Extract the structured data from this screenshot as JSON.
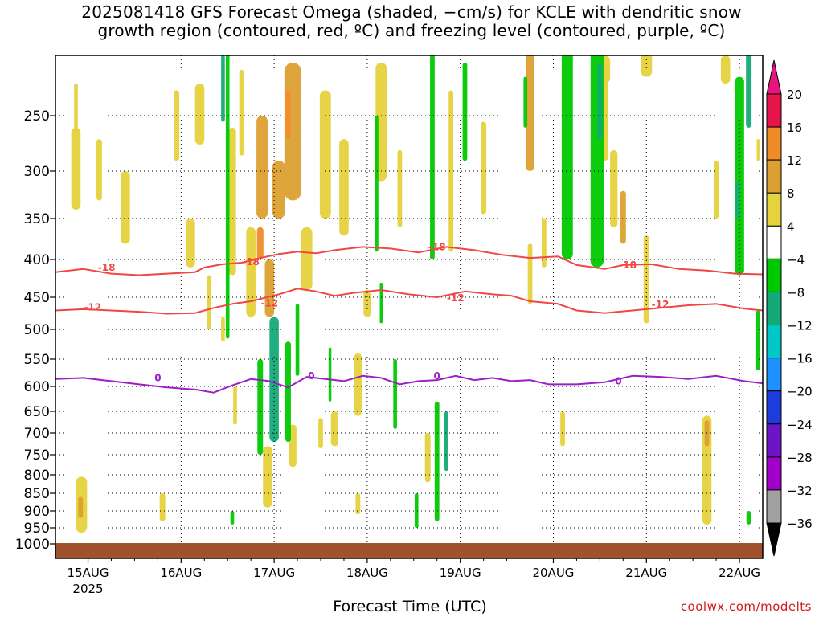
{
  "title_line1": "2025081418 GFS Forecast Omega (shaded, −cm/s) for KCLE with dendritic snow",
  "title_line2": "growth region (contoured, red, ºC) and freezing level (contoured, purple, ºC)",
  "credit": "coolwx.com/modelts",
  "chart_data": {
    "type": "heatmap",
    "title": "2025081418 GFS Forecast Omega (shaded, −cm/s) for KCLE with dendritic snow growth region (contoured, red, ºC) and freezing level (contoured, purple, ºC)",
    "xlabel": "Forecast Time (UTC)",
    "ylabel": "",
    "x_ticks": [
      "15AUG",
      "16AUG",
      "17AUG",
      "18AUG",
      "19AUG",
      "20AUG",
      "21AUG",
      "22AUG"
    ],
    "x_tick_sub": "2025",
    "x_tick_times": [
      0.35,
      1.35,
      2.35,
      3.35,
      4.35,
      5.35,
      6.35,
      7.35
    ],
    "xlim": [
      0,
      7.6
    ],
    "y_ticks": [
      250,
      300,
      350,
      400,
      450,
      500,
      550,
      600,
      650,
      700,
      750,
      800,
      850,
      900,
      950,
      1000
    ],
    "ylim": [
      200,
      1020
    ],
    "y_axis": "pressure (hPa), inverted, log scale",
    "grid": true,
    "colorbar": {
      "labels": [
        "20",
        "16",
        "12",
        "8",
        "4",
        "−4",
        "−8",
        "−12",
        "−16",
        "−20",
        "−24",
        "−28",
        "−32",
        "−36"
      ],
      "colors": [
        "#e6144b",
        "#f08c28",
        "#dca032",
        "#e6d23c",
        "#ffffff",
        "#00c800",
        "#14aa78",
        "#00c8c8",
        "#1e90ff",
        "#1e3cdc",
        "#6e14c8",
        "#a000c8",
        "#a0a0a0",
        "#000000"
      ],
      "top_arrow_color": "#e6147d",
      "bottom_arrow_color": "#000000"
    },
    "contours": [
      {
        "name": "-18",
        "color": "#f04646",
        "x": [
          0,
          0.3,
          0.6,
          0.9,
          1.2,
          1.5,
          1.6,
          1.8,
          2.0,
          2.2,
          2.4,
          2.6,
          2.8,
          3.0,
          3.3,
          3.6,
          3.9,
          4.2,
          4.5,
          4.8,
          5.1,
          5.4,
          5.6,
          5.9,
          6.1,
          6.4,
          6.7,
          7.0,
          7.3,
          7.6
        ],
        "y": [
          416,
          412,
          418,
          420,
          418,
          416,
          410,
          406,
          404,
          398,
          393,
          390,
          392,
          388,
          384,
          386,
          391,
          384,
          388,
          394,
          398,
          396,
          407,
          412,
          407,
          406,
          412,
          414,
          418,
          419
        ],
        "labels": [
          [
            0.55,
            410
          ],
          [
            2.1,
            403
          ],
          [
            4.1,
            384
          ],
          [
            6.15,
            407
          ]
        ]
      },
      {
        "name": "-12",
        "color": "#f04646",
        "x": [
          0,
          0.3,
          0.6,
          0.9,
          1.2,
          1.5,
          1.7,
          1.9,
          2.1,
          2.4,
          2.6,
          2.8,
          3.0,
          3.2,
          3.5,
          3.8,
          4.1,
          4.4,
          4.7,
          4.9,
          5.1,
          5.4,
          5.6,
          5.9,
          6.2,
          6.5,
          6.8,
          7.1,
          7.4,
          7.6
        ],
        "y": [
          470,
          468,
          470,
          472,
          475,
          474,
          466,
          460,
          456,
          446,
          438,
          442,
          448,
          444,
          440,
          446,
          450,
          442,
          446,
          448,
          456,
          460,
          470,
          474,
          470,
          466,
          462,
          460,
          467,
          470
        ],
        "labels": [
          [
            0.4,
            465
          ],
          [
            2.3,
            459
          ],
          [
            4.3,
            451
          ],
          [
            6.5,
            461
          ]
        ]
      },
      {
        "name": "0",
        "color": "#9b1ec8",
        "x": [
          0,
          0.3,
          0.6,
          0.9,
          1.2,
          1.5,
          1.7,
          1.9,
          2.1,
          2.3,
          2.5,
          2.7,
          2.9,
          3.1,
          3.3,
          3.5,
          3.7,
          3.9,
          4.1,
          4.3,
          4.5,
          4.7,
          4.9,
          5.1,
          5.3,
          5.6,
          5.9,
          6.2,
          6.5,
          6.8,
          7.1,
          7.4,
          7.6
        ],
        "y": [
          586,
          584,
          590,
          596,
          602,
          606,
          612,
          598,
          586,
          590,
          602,
          582,
          586,
          590,
          580,
          584,
          596,
          590,
          588,
          580,
          588,
          584,
          590,
          588,
          596,
          596,
          592,
          580,
          582,
          586,
          580,
          590,
          594
        ],
        "labels": [
          [
            1.1,
            584
          ],
          [
            2.75,
            580
          ],
          [
            4.1,
            580
          ],
          [
            6.05,
            590
          ]
        ]
      }
    ],
    "omega_cells": [
      {
        "x": 0.28,
        "y": 885,
        "w": 0.12,
        "h": 160,
        "v": 6
      },
      {
        "x": 0.27,
        "y": 890,
        "w": 0.05,
        "h": 60,
        "v": 10
      },
      {
        "x": 0.22,
        "y": 300,
        "w": 0.1,
        "h": 80,
        "v": 6
      },
      {
        "x": 0.47,
        "y": 300,
        "w": 0.06,
        "h": 60,
        "v": 5
      },
      {
        "x": 0.22,
        "y": 245,
        "w": 0.04,
        "h": 40,
        "v": 5
      },
      {
        "x": 1.15,
        "y": 890,
        "w": 0.06,
        "h": 80,
        "v": 5
      },
      {
        "x": 1.3,
        "y": 260,
        "w": 0.06,
        "h": 60,
        "v": 5
      },
      {
        "x": 1.45,
        "y": 380,
        "w": 0.1,
        "h": 60,
        "v": 5
      },
      {
        "x": 1.55,
        "y": 250,
        "w": 0.1,
        "h": 50,
        "v": 5
      },
      {
        "x": 1.65,
        "y": 460,
        "w": 0.05,
        "h": 80,
        "v": 5
      },
      {
        "x": 1.9,
        "y": 340,
        "w": 0.08,
        "h": 160,
        "v": 6
      },
      {
        "x": 2.0,
        "y": 250,
        "w": 0.05,
        "h": 70,
        "v": 6
      },
      {
        "x": 2.1,
        "y": 420,
        "w": 0.1,
        "h": 120,
        "v": 6
      },
      {
        "x": 2.2,
        "y": 380,
        "w": 0.07,
        "h": 40,
        "v": 13
      },
      {
        "x": 2.22,
        "y": 300,
        "w": 0.12,
        "h": 100,
        "v": 10
      },
      {
        "x": 2.3,
        "y": 440,
        "w": 0.1,
        "h": 80,
        "v": 8
      },
      {
        "x": 2.4,
        "y": 320,
        "w": 0.14,
        "h": 60,
        "v": 9
      },
      {
        "x": 2.55,
        "y": 270,
        "w": 0.18,
        "h": 120,
        "v": 9
      },
      {
        "x": 2.5,
        "y": 250,
        "w": 0.05,
        "h": 40,
        "v": 13
      },
      {
        "x": 2.7,
        "y": 400,
        "w": 0.12,
        "h": 80,
        "v": 6
      },
      {
        "x": 2.9,
        "y": 290,
        "w": 0.12,
        "h": 120,
        "v": 6
      },
      {
        "x": 3.1,
        "y": 320,
        "w": 0.1,
        "h": 100,
        "v": 6
      },
      {
        "x": 3.0,
        "y": 690,
        "w": 0.08,
        "h": 80,
        "v": 6
      },
      {
        "x": 3.25,
        "y": 600,
        "w": 0.08,
        "h": 120,
        "v": 6
      },
      {
        "x": 3.5,
        "y": 260,
        "w": 0.12,
        "h": 100,
        "v": 6
      },
      {
        "x": 3.35,
        "y": 460,
        "w": 0.08,
        "h": 40,
        "v": 7
      },
      {
        "x": 3.7,
        "y": 320,
        "w": 0.05,
        "h": 80,
        "v": 5
      },
      {
        "x": 1.93,
        "y": 640,
        "w": 0.04,
        "h": 80,
        "v": 5
      },
      {
        "x": 2.28,
        "y": 810,
        "w": 0.1,
        "h": 160,
        "v": 6
      },
      {
        "x": 2.55,
        "y": 730,
        "w": 0.08,
        "h": 100,
        "v": 6
      },
      {
        "x": 2.85,
        "y": 700,
        "w": 0.05,
        "h": 70,
        "v": 5
      },
      {
        "x": 3.25,
        "y": 880,
        "w": 0.05,
        "h": 60,
        "v": 5
      },
      {
        "x": 4.0,
        "y": 760,
        "w": 0.06,
        "h": 120,
        "v": 5
      },
      {
        "x": 4.25,
        "y": 310,
        "w": 0.05,
        "h": 160,
        "v": 5
      },
      {
        "x": 4.6,
        "y": 300,
        "w": 0.06,
        "h": 90,
        "v": 5
      },
      {
        "x": 5.1,
        "y": 250,
        "w": 0.08,
        "h": 100,
        "v": 8
      },
      {
        "x": 5.1,
        "y": 420,
        "w": 0.05,
        "h": 80,
        "v": 5
      },
      {
        "x": 5.9,
        "y": 250,
        "w": 0.08,
        "h": 80,
        "v": 5
      },
      {
        "x": 6.0,
        "y": 320,
        "w": 0.08,
        "h": 80,
        "v": 5
      },
      {
        "x": 6.1,
        "y": 350,
        "w": 0.06,
        "h": 60,
        "v": 9
      },
      {
        "x": 5.9,
        "y": 215,
        "w": 0.12,
        "h": 20,
        "v": 5
      },
      {
        "x": 6.35,
        "y": 210,
        "w": 0.12,
        "h": 20,
        "v": 5
      },
      {
        "x": 6.35,
        "y": 430,
        "w": 0.06,
        "h": 120,
        "v": 5
      },
      {
        "x": 7.0,
        "y": 800,
        "w": 0.1,
        "h": 280,
        "v": 6
      },
      {
        "x": 7.0,
        "y": 700,
        "w": 0.05,
        "h": 60,
        "v": 9
      },
      {
        "x": 7.2,
        "y": 215,
        "w": 0.1,
        "h": 20,
        "v": 5
      },
      {
        "x": 7.1,
        "y": 320,
        "w": 0.05,
        "h": 60,
        "v": 5
      },
      {
        "x": 7.55,
        "y": 280,
        "w": 0.03,
        "h": 20,
        "v": 5
      },
      {
        "x": 5.45,
        "y": 690,
        "w": 0.05,
        "h": 80,
        "v": 5
      },
      {
        "x": 0.75,
        "y": 340,
        "w": 0.1,
        "h": 80,
        "v": 5
      },
      {
        "x": 1.8,
        "y": 500,
        "w": 0.04,
        "h": 40,
        "v": 5
      },
      {
        "x": 5.25,
        "y": 380,
        "w": 0.05,
        "h": 60,
        "v": 5
      },
      {
        "x": 1.85,
        "y": 315,
        "w": 0.04,
        "h": 400,
        "v": -6
      },
      {
        "x": 2.35,
        "y": 600,
        "w": 0.1,
        "h": 240,
        "v": -9
      },
      {
        "x": 2.2,
        "y": 650,
        "w": 0.06,
        "h": 200,
        "v": -6
      },
      {
        "x": 2.5,
        "y": 620,
        "w": 0.06,
        "h": 200,
        "v": -6
      },
      {
        "x": 2.6,
        "y": 520,
        "w": 0.04,
        "h": 120,
        "v": -6
      },
      {
        "x": 3.45,
        "y": 320,
        "w": 0.04,
        "h": 140,
        "v": -6
      },
      {
        "x": 3.65,
        "y": 620,
        "w": 0.04,
        "h": 140,
        "v": -6
      },
      {
        "x": 4.1,
        "y": 780,
        "w": 0.05,
        "h": 300,
        "v": -6
      },
      {
        "x": 4.2,
        "y": 720,
        "w": 0.04,
        "h": 140,
        "v": -11
      },
      {
        "x": 4.05,
        "y": 300,
        "w": 0.05,
        "h": 200,
        "v": -6
      },
      {
        "x": 4.4,
        "y": 250,
        "w": 0.05,
        "h": 80,
        "v": -6
      },
      {
        "x": 5.05,
        "y": 240,
        "w": 0.04,
        "h": 40,
        "v": -6
      },
      {
        "x": 5.5,
        "y": 300,
        "w": 0.12,
        "h": 200,
        "v": -6
      },
      {
        "x": 5.82,
        "y": 260,
        "w": 0.14,
        "h": 300,
        "v": -6
      },
      {
        "x": 5.85,
        "y": 240,
        "w": 0.05,
        "h": 60,
        "v": -11
      },
      {
        "x": 7.35,
        "y": 320,
        "w": 0.1,
        "h": 200,
        "v": -6
      },
      {
        "x": 7.33,
        "y": 330,
        "w": 0.04,
        "h": 40,
        "v": -9
      },
      {
        "x": 7.45,
        "y": 230,
        "w": 0.06,
        "h": 60,
        "v": -11
      },
      {
        "x": 7.55,
        "y": 520,
        "w": 0.04,
        "h": 100,
        "v": -6
      },
      {
        "x": 3.88,
        "y": 900,
        "w": 0.04,
        "h": 100,
        "v": -6
      },
      {
        "x": 1.9,
        "y": 920,
        "w": 0.04,
        "h": 40,
        "v": -6
      },
      {
        "x": 7.45,
        "y": 920,
        "w": 0.05,
        "h": 40,
        "v": -6
      },
      {
        "x": 3.5,
        "y": 460,
        "w": 0.03,
        "h": 60,
        "v": -6
      },
      {
        "x": 2.95,
        "y": 580,
        "w": 0.03,
        "h": 100,
        "v": -6
      },
      {
        "x": 1.8,
        "y": 230,
        "w": 0.04,
        "h": 50,
        "v": -9
      }
    ]
  }
}
